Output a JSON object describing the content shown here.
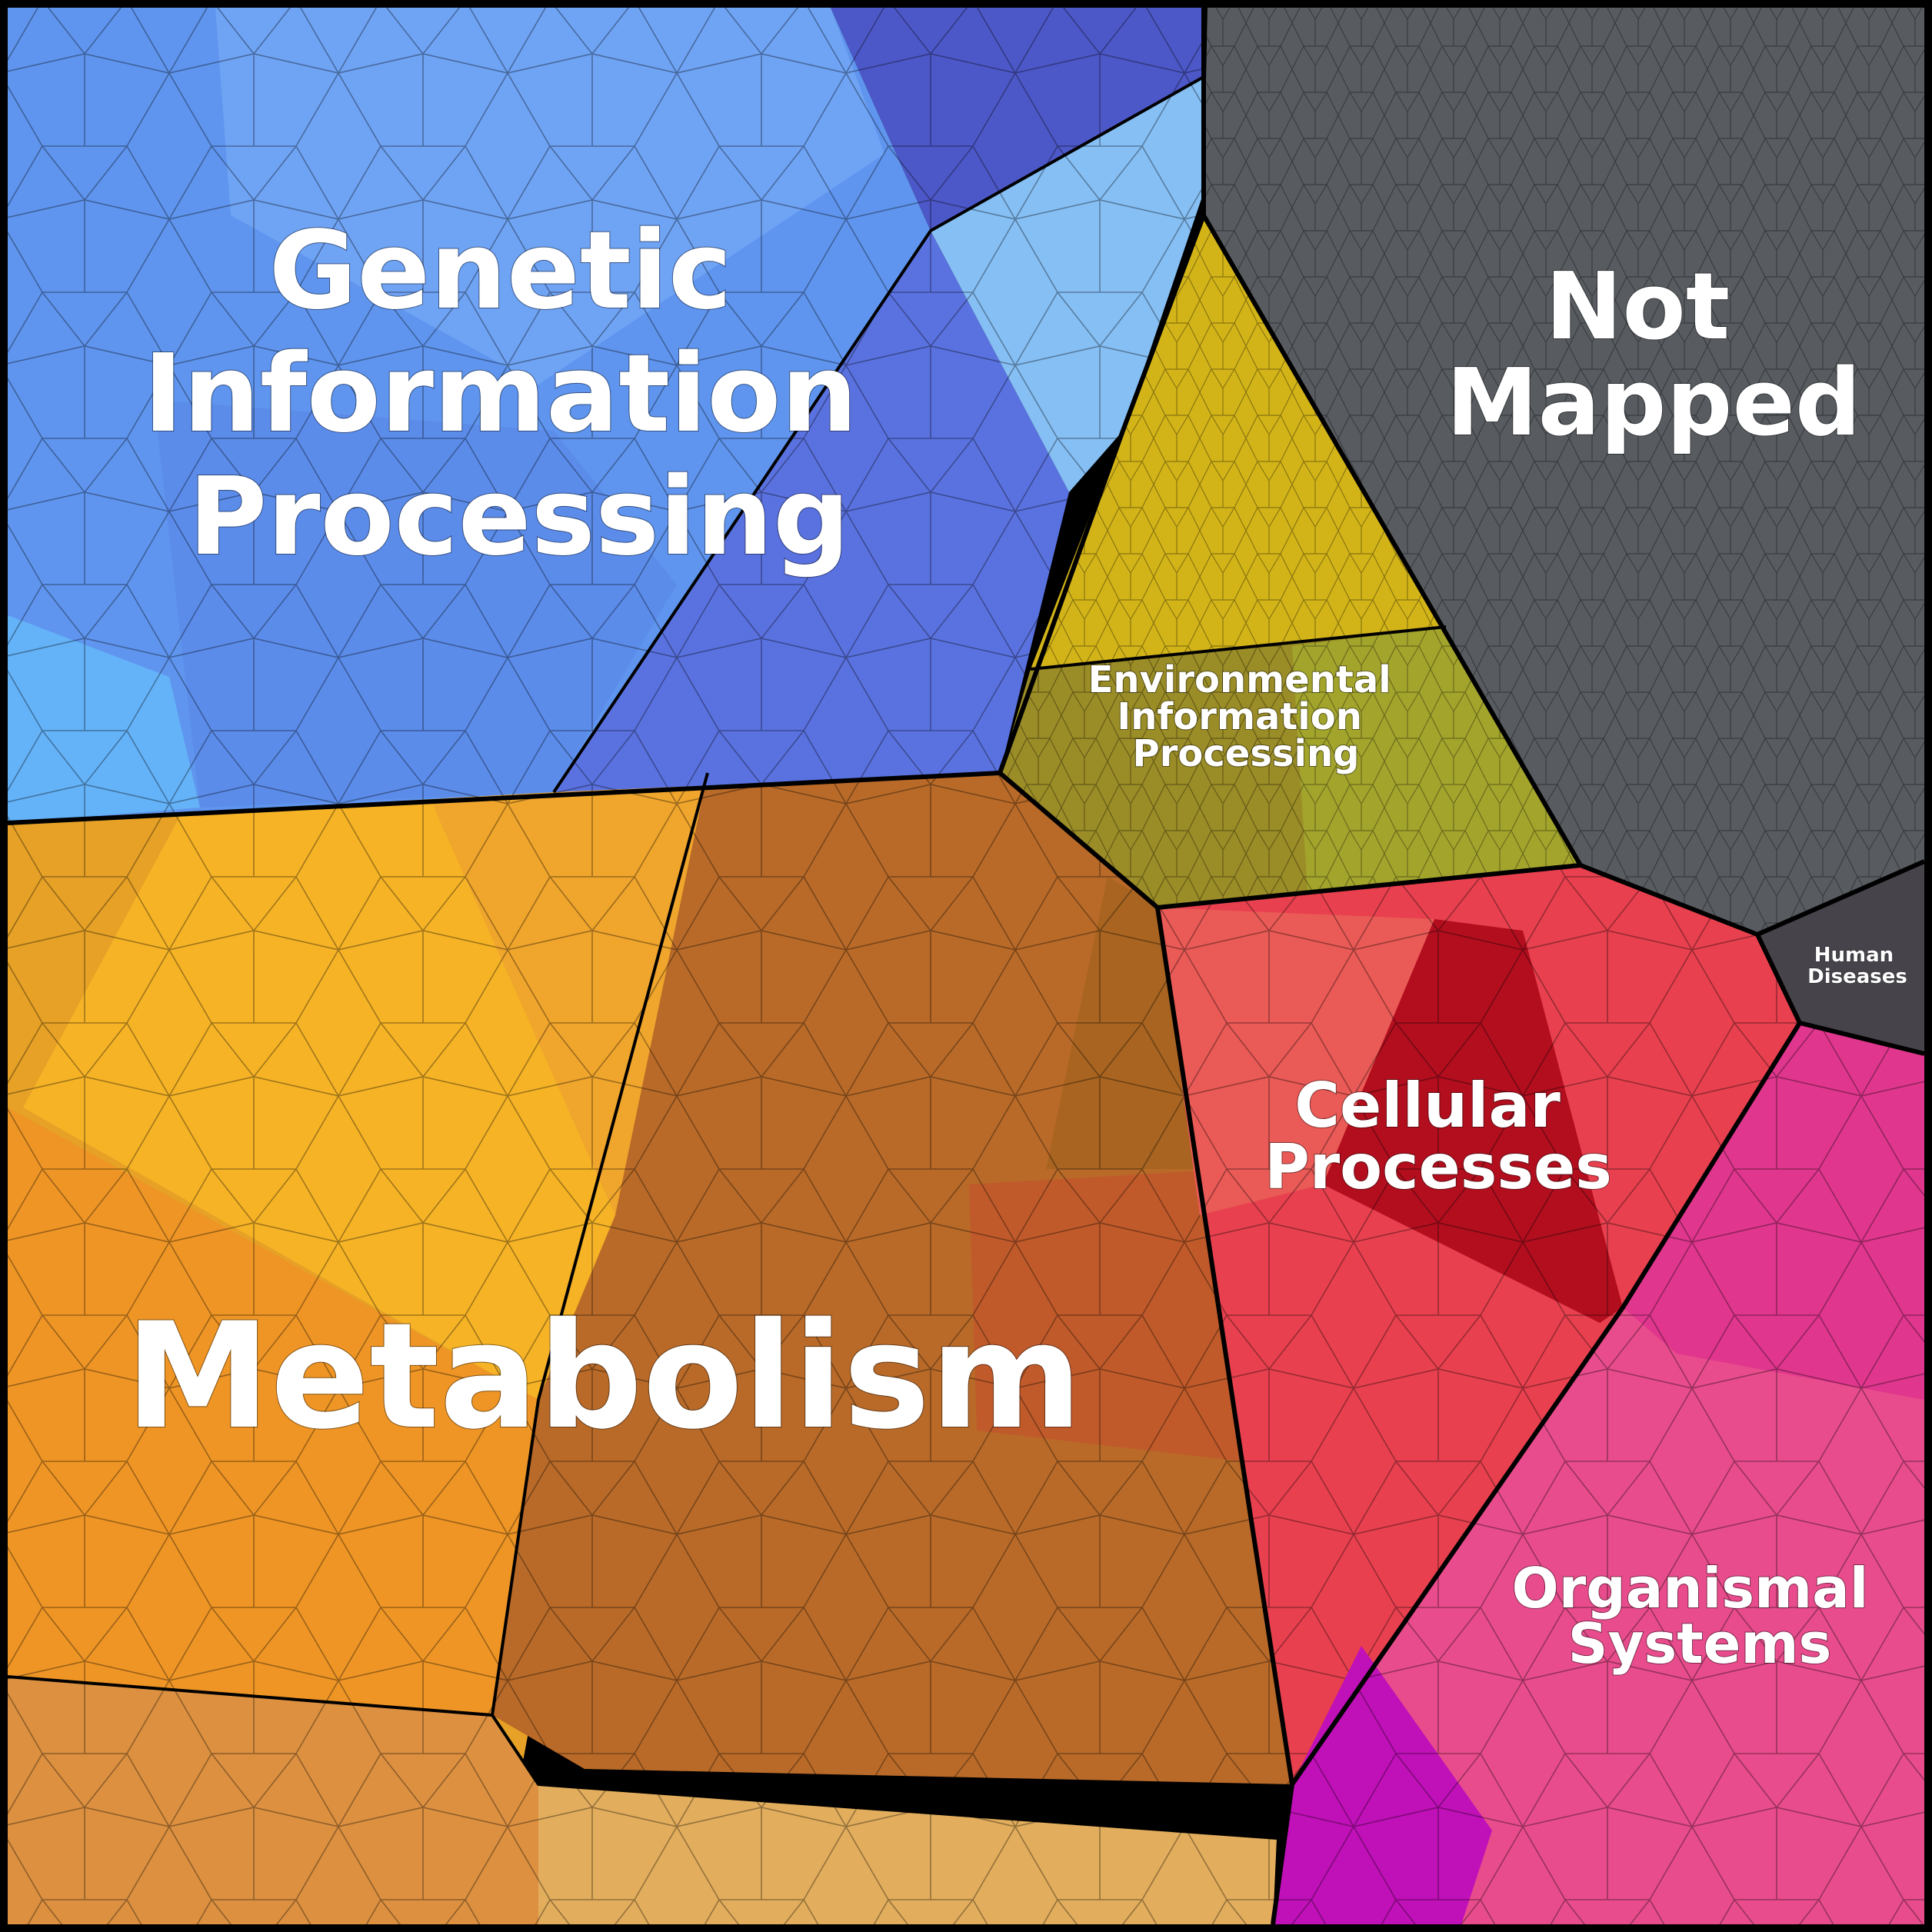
{
  "chart_data": {
    "type": "voronoi-treemap",
    "title": "",
    "colors": {
      "metabolism": "#e8941f",
      "genetic": "#5f8ef0",
      "environmental": "#c8b020",
      "cellular": "#d82a3c",
      "organismal": "#e84c8c",
      "human_diseases": "#4a4548",
      "not_mapped": "#5a5e62",
      "border": "#000000"
    },
    "categories": [
      {
        "id": "genetic",
        "label_lines": [
          "Genetic",
          "Information",
          "Processing"
        ]
      },
      {
        "id": "not_mapped",
        "label_lines": [
          "Not",
          "Mapped"
        ]
      },
      {
        "id": "environmental",
        "label_lines": [
          "Environmental",
          "Information",
          "Processing"
        ]
      },
      {
        "id": "cellular",
        "label_lines": [
          "Cellular",
          "Processes"
        ]
      },
      {
        "id": "human_diseases",
        "label_lines": [
          "Human",
          "Diseases"
        ]
      },
      {
        "id": "metabolism",
        "label_lines": [
          "Metabolism"
        ]
      },
      {
        "id": "organismal",
        "label_lines": [
          "Organismal",
          "Systems"
        ]
      }
    ]
  }
}
